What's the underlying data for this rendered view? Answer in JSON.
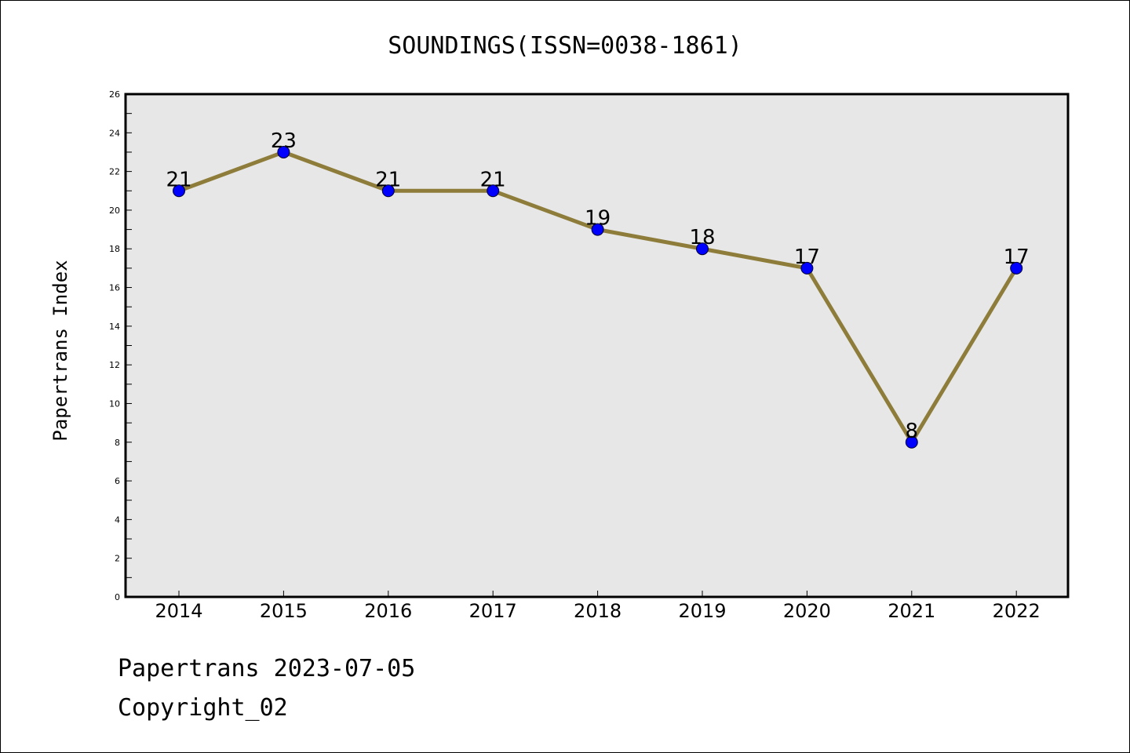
{
  "chart_data": {
    "type": "line",
    "title": "SOUNDINGS(ISSN=0038-1861)",
    "ylabel": "Papertrans Index",
    "xlabel": "",
    "categories": [
      "2014",
      "2015",
      "2016",
      "2017",
      "2018",
      "2019",
      "2020",
      "2021",
      "2022"
    ],
    "values": [
      21,
      23,
      21,
      21,
      19,
      18,
      17,
      8,
      17
    ],
    "ylim": [
      0,
      26
    ],
    "yticks": [
      "0",
      "2",
      "4",
      "6",
      "8",
      "10",
      "12",
      "14",
      "16",
      "18",
      "20",
      "22",
      "24",
      "26"
    ],
    "grid": false,
    "legend": "none",
    "colors": {
      "line": "#8e7d3a",
      "marker": "#0000ff",
      "plot_background": "#e7e7e7"
    }
  },
  "footer": {
    "line1": "Papertrans 2023-07-05",
    "line2": "Copyright_02"
  }
}
